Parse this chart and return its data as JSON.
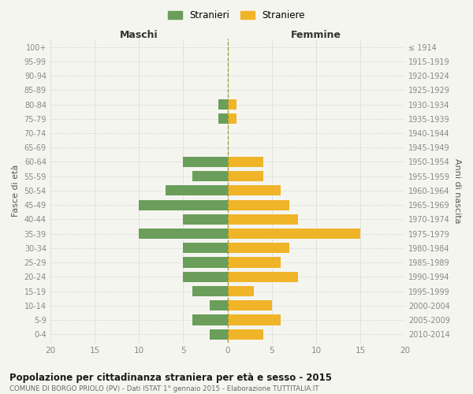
{
  "age_groups": [
    "0-4",
    "5-9",
    "10-14",
    "15-19",
    "20-24",
    "25-29",
    "30-34",
    "35-39",
    "40-44",
    "45-49",
    "50-54",
    "55-59",
    "60-64",
    "65-69",
    "70-74",
    "75-79",
    "80-84",
    "85-89",
    "90-94",
    "95-99",
    "100+"
  ],
  "birth_years": [
    "2010-2014",
    "2005-2009",
    "2000-2004",
    "1995-1999",
    "1990-1994",
    "1985-1989",
    "1980-1984",
    "1975-1979",
    "1970-1974",
    "1965-1969",
    "1960-1964",
    "1955-1959",
    "1950-1954",
    "1945-1949",
    "1940-1944",
    "1935-1939",
    "1930-1934",
    "1925-1929",
    "1920-1924",
    "1915-1919",
    "≤ 1914"
  ],
  "males": [
    2,
    4,
    2,
    4,
    5,
    5,
    5,
    10,
    5,
    10,
    7,
    4,
    5,
    0,
    0,
    1,
    1,
    0,
    0,
    0,
    0
  ],
  "females": [
    4,
    6,
    5,
    3,
    8,
    6,
    7,
    15,
    8,
    7,
    6,
    4,
    4,
    0,
    0,
    1,
    1,
    0,
    0,
    0,
    0
  ],
  "male_color": "#6a9e5a",
  "female_color": "#f0b429",
  "title": "Popolazione per cittadinanza straniera per età e sesso - 2015",
  "subtitle": "COMUNE DI BORGO PRIOLO (PV) - Dati ISTAT 1° gennaio 2015 - Elaborazione TUTTITALIA.IT",
  "header_left": "Maschi",
  "header_right": "Femmine",
  "ylabel_left": "Fasce di età",
  "ylabel_right": "Anni di nascita",
  "legend_males": "Stranieri",
  "legend_females": "Straniere",
  "xlim": 20,
  "bg_color": "#f5f5f0",
  "grid_color": "#cccccc",
  "dashed_line_color": "#999933",
  "bar_height": 0.72,
  "tick_color": "#888888",
  "label_color": "#555555",
  "header_color": "#333333"
}
